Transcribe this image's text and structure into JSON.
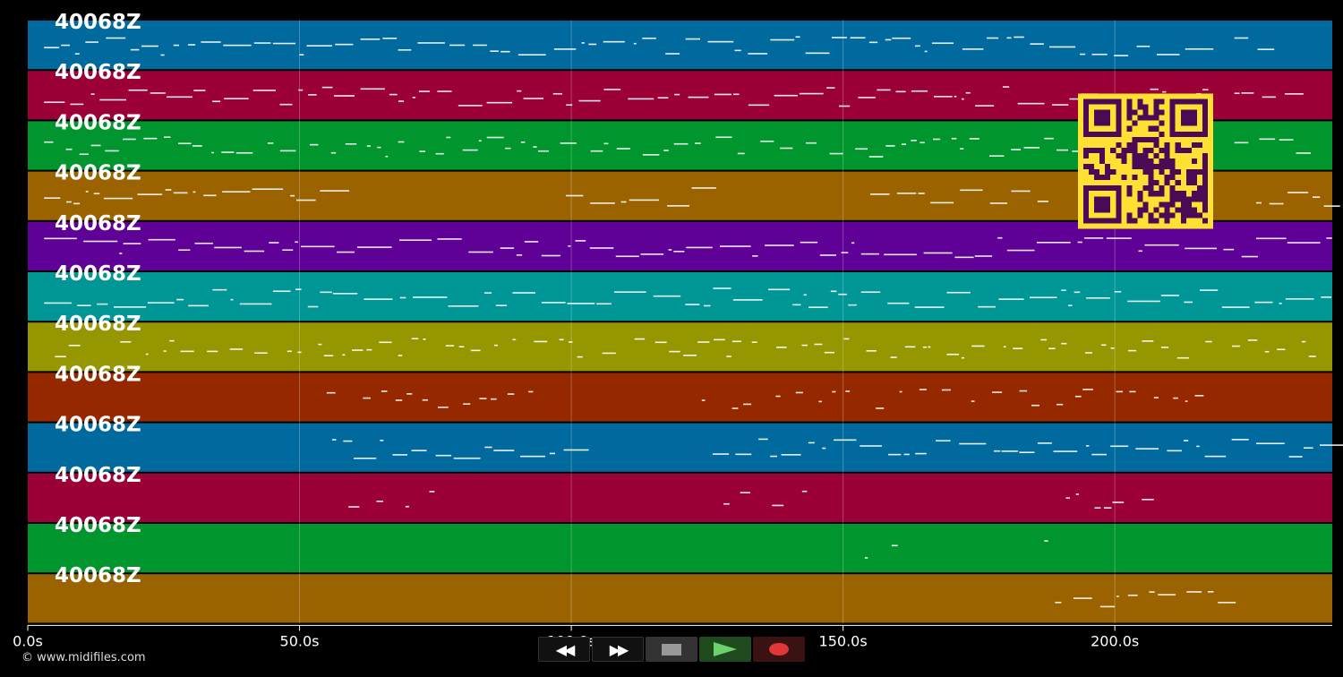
{
  "copyright": "© www.midifiles.com",
  "axis": {
    "unit": "s",
    "range": [
      0,
      240
    ],
    "ticks": [
      {
        "value": 0,
        "label": "0.0s"
      },
      {
        "value": 50,
        "label": "50.0s"
      },
      {
        "value": 100,
        "label": "100.0s"
      },
      {
        "value": 150,
        "label": "150.0s"
      },
      {
        "value": 200,
        "label": "200.0s"
      }
    ]
  },
  "tracks": [
    {
      "label": "40068Z",
      "color": "#00699e"
    },
    {
      "label": "40068Z",
      "color": "#9b0036"
    },
    {
      "label": "40068Z",
      "color": "#00962d"
    },
    {
      "label": "40068Z",
      "color": "#9b6300"
    },
    {
      "label": "40068Z",
      "color": "#5f0096"
    },
    {
      "label": "40068Z",
      "color": "#009696"
    },
    {
      "label": "40068Z",
      "color": "#969600"
    },
    {
      "label": "40068Z",
      "color": "#962800"
    },
    {
      "label": "40068Z",
      "color": "#00699e"
    },
    {
      "label": "40068Z",
      "color": "#9b0036"
    },
    {
      "label": "40068Z",
      "color": "#00962d"
    },
    {
      "label": "40068Z",
      "color": "#9b6300"
    }
  ],
  "controls": {
    "rewind": "rewind-icon",
    "forward": "fast-forward-icon",
    "stop": "stop-icon",
    "play": "play-icon",
    "record": "record-icon"
  },
  "qr_code": {
    "color": "#ffe033",
    "dark": "#4a0a55"
  }
}
